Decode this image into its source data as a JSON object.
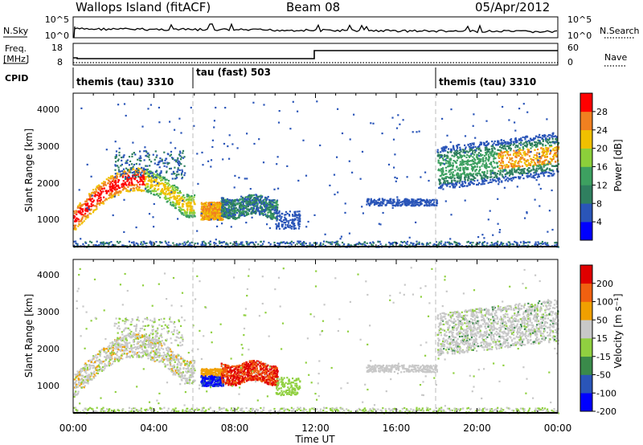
{
  "header": {
    "site": "Wallops Island (fitACF)",
    "beam": "Beam 08",
    "date": "05/Apr/2012"
  },
  "panels": {
    "nsky": {
      "label": "N.Sky",
      "ticks": [
        "10^5",
        "10^0"
      ],
      "right_label": "N.Search",
      "right_ticks": [
        "10^5",
        "10^0"
      ]
    },
    "freq": {
      "label_line1": "Freq.",
      "label_line2": "[MHz]",
      "ticks": [
        "18",
        "8"
      ],
      "right_label": "Nave",
      "right_ticks": [
        "60",
        "0"
      ]
    },
    "cpid": {
      "label": "CPID",
      "segments": [
        "themis (tau) 3310",
        "tau (fast) 503",
        "themis (tau) 3310"
      ]
    }
  },
  "chart_data": [
    {
      "type": "heatmap",
      "name": "power",
      "ylabel": "Slant Range [km]",
      "yticks": [
        "4000",
        "3000",
        "2000",
        "1000"
      ],
      "yrange": [
        180,
        4500
      ],
      "colorbar_label": "Power [dB]",
      "colorbar_ticks": [
        "28",
        "24",
        "20",
        "16",
        "12",
        "8",
        "4"
      ],
      "colors": [
        "#0000ff",
        "#2a55b8",
        "#2f7f5f",
        "#3da060",
        "#8ccf3a",
        "#f0c000",
        "#f08020",
        "#ff0000"
      ]
    },
    {
      "type": "heatmap",
      "name": "velocity",
      "ylabel": "Slant Range [km]",
      "yticks": [
        "4000",
        "3000",
        "2000",
        "1000"
      ],
      "yrange": [
        180,
        4500
      ],
      "colorbar_label": "Velocity [m s⁻¹]",
      "colorbar_ticks": [
        "200",
        "100",
        "50",
        "15",
        "-15",
        "-50",
        "-100",
        "-200"
      ],
      "colors": [
        "#0000ff",
        "#2a55b8",
        "#3a8a4a",
        "#90d040",
        "#c8c8c8",
        "#f0a000",
        "#f06010",
        "#e00000"
      ]
    }
  ],
  "xaxis": {
    "label": "Time UT",
    "ticks": [
      "00:00",
      "04:00",
      "08:00",
      "12:00",
      "16:00",
      "20:00",
      "00:00"
    ]
  }
}
